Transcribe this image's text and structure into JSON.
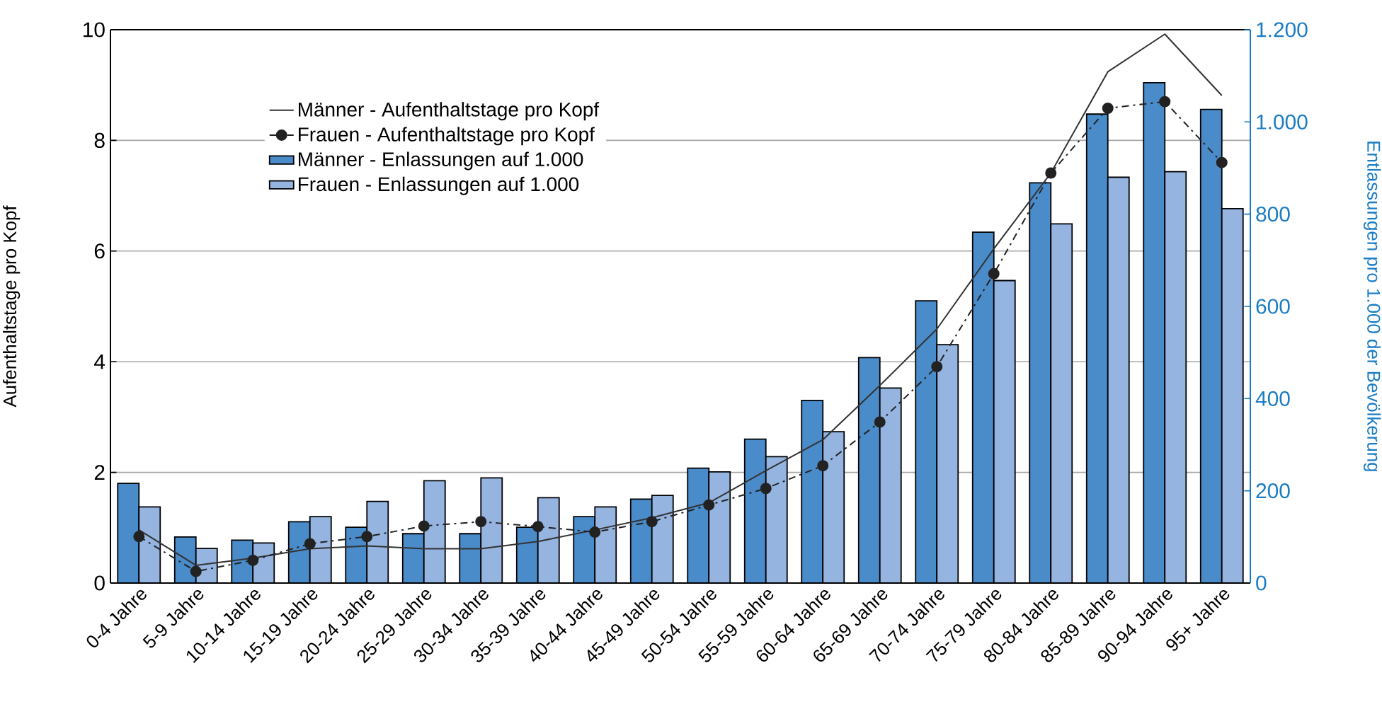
{
  "chart_data": {
    "type": "bar",
    "ylabel": "Aufenthaltstage pro Kopf",
    "y2label": "Entlassungen pro 1.000 der Bevölkerung",
    "categories": [
      "0-4 Jahre",
      "5-9 Jahre",
      "10-14 Jahre",
      "15-19 Jahre",
      "20-24 Jahre",
      "25-29 Jahre",
      "30-34 Jahre",
      "35-39 Jahre",
      "40-44 Jahre",
      "45-49 Jahre",
      "50-54 Jahre",
      "55-59 Jahre",
      "60-64 Jahre",
      "65-69 Jahre",
      "70-74 Jahre",
      "75-79 Jahre",
      "80-84 Jahre",
      "85-89 Jahre",
      "90-94 Jahre",
      "95+ Jahre"
    ],
    "series": [
      {
        "name": "Männer - Aufenthaltstage pro Kopf",
        "type": "line",
        "color": "#333333",
        "marker": "none",
        "line_style": "solid",
        "values": [
          0.96,
          0.32,
          0.45,
          0.62,
          0.67,
          0.62,
          0.62,
          0.75,
          0.96,
          1.18,
          1.45,
          2.03,
          2.59,
          3.57,
          4.59,
          6.04,
          7.41,
          9.24,
          9.92,
          8.81
        ]
      },
      {
        "name": "Frauen - Aufenthaltstage pro Kopf",
        "type": "line",
        "color": "#222222",
        "marker": "circle",
        "line_style": "dashed",
        "values": [
          0.84,
          0.21,
          0.41,
          0.71,
          0.84,
          1.03,
          1.11,
          1.02,
          0.92,
          1.11,
          1.41,
          1.71,
          2.12,
          2.91,
          3.91,
          5.59,
          7.41,
          8.58,
          8.7,
          7.6
        ]
      },
      {
        "name": "Männer - Enlassungen auf 1.000",
        "axis": "y2",
        "color": "#4a8bc9",
        "values": [
          216,
          100,
          93,
          133,
          121,
          107,
          107,
          121,
          144,
          182,
          249,
          312,
          396,
          489,
          612,
          761,
          868,
          1017,
          1085,
          1027
        ]
      },
      {
        "name": "Frauen - Enlassungen auf 1.000",
        "axis": "y2",
        "color": "#95b4e0",
        "values": [
          165,
          75,
          87,
          144,
          177,
          222,
          228,
          185,
          165,
          190,
          241,
          274,
          328,
          423,
          517,
          656,
          779,
          880,
          892,
          812
        ]
      }
    ],
    "ylim": [
      0,
      10
    ],
    "yticks": [
      0,
      2,
      4,
      6,
      8,
      10
    ],
    "y2lim": [
      0,
      1200
    ],
    "y2ticks": [
      0,
      200,
      400,
      600,
      800,
      {
        "value": 1000,
        "label": "1.000"
      },
      {
        "value": 1200,
        "label": "1.200"
      }
    ],
    "grid": "y",
    "legend": "top left"
  }
}
